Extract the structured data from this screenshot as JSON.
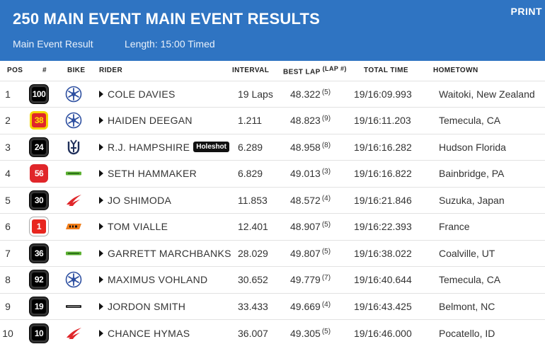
{
  "header": {
    "title": "250 MAIN EVENT MAIN EVENT RESULTS",
    "print_label": "PRINT",
    "subtitle": "Main Event Result",
    "length": "Length: 15:00 Timed"
  },
  "columns": {
    "pos": "POS",
    "num": "#",
    "bike": "BIKE",
    "rider": "RIDER",
    "interval": "INTERVAL",
    "best_lap": "BEST LAP",
    "lap_hash": "(LAP #)",
    "total_time": "TOTAL TIME",
    "hometown": "HOMETOWN"
  },
  "colors": {
    "header_bg": "#2f74c2",
    "yamaha_blue": "#2d4fa0",
    "husqvarna_navy": "#1f2f5a",
    "kawasaki_green": "#5bb030",
    "honda_red": "#e0262a",
    "ktm_orange": "#f07d1a"
  },
  "rows": [
    {
      "pos": "1",
      "num": "100",
      "plate": "black",
      "bike": "yamaha-icon",
      "rider": "COLE DAVIES",
      "holeshot": "",
      "interval": "19 Laps",
      "best_lap": "48.322",
      "lap": "(5)",
      "total_time": "19/16:09.993",
      "hometown": "Waitoki, New Zealand"
    },
    {
      "pos": "2",
      "num": "38",
      "plate": "yellow",
      "bike": "yamaha-icon",
      "rider": "HAIDEN DEEGAN",
      "holeshot": "",
      "interval": "1.211",
      "best_lap": "48.823",
      "lap": "(9)",
      "total_time": "19/16:11.203",
      "hometown": "Temecula, CA"
    },
    {
      "pos": "3",
      "num": "24",
      "plate": "black",
      "bike": "husqvarna-icon",
      "rider": "R.J. HAMPSHIRE",
      "holeshot": "Holeshot",
      "interval": "6.289",
      "best_lap": "48.958",
      "lap": "(8)",
      "total_time": "19/16:16.282",
      "hometown": "Hudson Florida"
    },
    {
      "pos": "4",
      "num": "56",
      "plate": "red",
      "bike": "kawasaki-icon",
      "rider": "SETH HAMMAKER",
      "holeshot": "",
      "interval": "6.829",
      "best_lap": "49.013",
      "lap": "(3)",
      "total_time": "19/16:16.822",
      "hometown": "Bainbridge, PA"
    },
    {
      "pos": "5",
      "num": "30",
      "plate": "black",
      "bike": "honda-icon",
      "rider": "JO SHIMODA",
      "holeshot": "",
      "interval": "11.853",
      "best_lap": "48.572",
      "lap": "(4)",
      "total_time": "19/16:21.846",
      "hometown": "Suzuka, Japan"
    },
    {
      "pos": "6",
      "num": "1",
      "plate": "redw",
      "bike": "ktm-icon",
      "rider": "TOM VIALLE",
      "holeshot": "",
      "interval": "12.401",
      "best_lap": "48.907",
      "lap": "(5)",
      "total_time": "19/16:22.393",
      "hometown": "France"
    },
    {
      "pos": "7",
      "num": "36",
      "plate": "black",
      "bike": "kawasaki-icon",
      "rider": "GARRETT MARCHBANKS",
      "holeshot": "",
      "interval": "28.029",
      "best_lap": "49.807",
      "lap": "(5)",
      "total_time": "19/16:38.022",
      "hometown": "Coalville, UT"
    },
    {
      "pos": "8",
      "num": "92",
      "plate": "black",
      "bike": "yamaha-icon",
      "rider": "MAXIMUS VOHLAND",
      "holeshot": "",
      "interval": "30.652",
      "best_lap": "49.779",
      "lap": "(7)",
      "total_time": "19/16:40.644",
      "hometown": "Temecula, CA"
    },
    {
      "pos": "9",
      "num": "19",
      "plate": "black",
      "bike": "suzuki-icon",
      "rider": "JORDON SMITH",
      "holeshot": "",
      "interval": "33.433",
      "best_lap": "49.669",
      "lap": "(4)",
      "total_time": "19/16:43.425",
      "hometown": "Belmont, NC"
    },
    {
      "pos": "10",
      "num": "10",
      "plate": "black",
      "bike": "honda-icon",
      "rider": "CHANCE HYMAS",
      "holeshot": "",
      "interval": "36.007",
      "best_lap": "49.305",
      "lap": "(5)",
      "total_time": "19/16:46.000",
      "hometown": "Pocatello, ID"
    }
  ]
}
